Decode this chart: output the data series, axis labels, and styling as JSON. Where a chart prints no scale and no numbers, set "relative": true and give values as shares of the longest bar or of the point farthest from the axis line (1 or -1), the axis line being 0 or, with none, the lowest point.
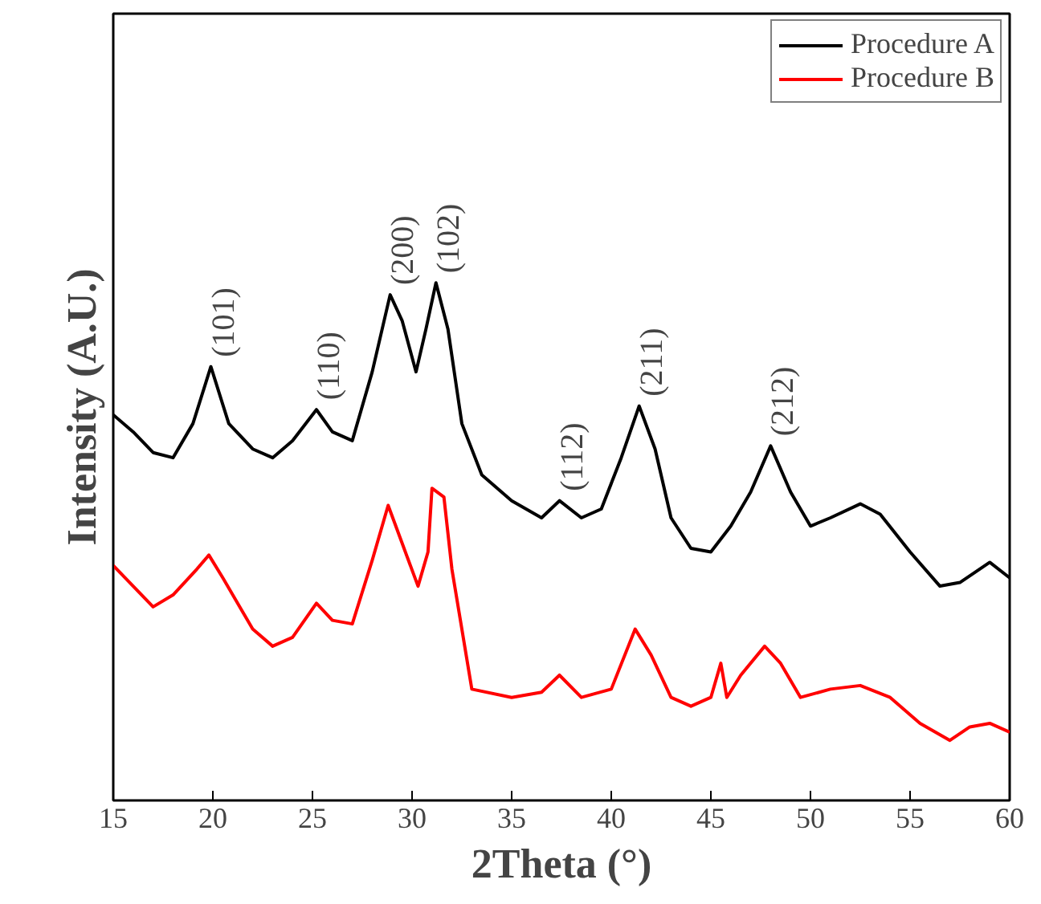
{
  "chart_data": {
    "type": "line",
    "xlabel": "2Theta (°)",
    "ylabel": "Intensity (A.U.)",
    "relative": true,
    "xlim": [
      15,
      60
    ],
    "xticks": [
      15,
      20,
      25,
      30,
      35,
      40,
      45,
      50,
      55,
      60
    ],
    "grid": false,
    "legend": "top right",
    "line_style": "solid",
    "marker": "none",
    "series": [
      {
        "name": "Procedure A",
        "color": "#000000",
        "x": [
          15,
          16,
          17,
          18,
          19,
          19.9,
          20.8,
          22,
          23,
          24,
          25.2,
          26,
          27,
          28,
          28.9,
          29.5,
          30.2,
          30.7,
          31.2,
          31.8,
          32.5,
          33.5,
          35,
          36.5,
          37.4,
          38.5,
          39.5,
          40.5,
          41.4,
          42.2,
          43,
          44,
          45,
          46,
          47,
          48,
          49,
          50,
          51,
          52.5,
          53.5,
          55,
          56.5,
          57.5,
          59,
          60
        ],
        "values": [
          0.745,
          0.712,
          0.672,
          0.662,
          0.728,
          0.838,
          0.728,
          0.679,
          0.662,
          0.695,
          0.755,
          0.712,
          0.695,
          0.828,
          0.977,
          0.927,
          0.828,
          0.911,
          1.0,
          0.911,
          0.728,
          0.629,
          0.579,
          0.546,
          0.579,
          0.546,
          0.563,
          0.662,
          0.762,
          0.679,
          0.546,
          0.487,
          0.48,
          0.53,
          0.596,
          0.685,
          0.596,
          0.53,
          0.546,
          0.573,
          0.553,
          0.48,
          0.414,
          0.421,
          0.46,
          0.43
        ]
      },
      {
        "name": "Procedure B",
        "color": "#ff0000",
        "x": [
          15,
          16,
          17,
          18,
          19.2,
          19.8,
          20.5,
          22,
          23,
          24,
          25.2,
          26,
          27,
          28,
          28.8,
          29.5,
          30.3,
          30.8,
          31,
          31.6,
          32,
          33,
          35,
          36.5,
          37.4,
          38.5,
          40,
          41.2,
          42,
          43,
          44,
          45,
          45.5,
          45.8,
          46.5,
          47.7,
          48.5,
          49.5,
          51,
          52.5,
          54,
          55.5,
          57,
          58,
          59,
          60
        ],
        "values": [
          0.454,
          0.414,
          0.374,
          0.397,
          0.447,
          0.474,
          0.43,
          0.331,
          0.298,
          0.315,
          0.381,
          0.348,
          0.341,
          0.464,
          0.57,
          0.497,
          0.414,
          0.48,
          0.603,
          0.586,
          0.447,
          0.215,
          0.199,
          0.209,
          0.242,
          0.199,
          0.215,
          0.331,
          0.281,
          0.199,
          0.182,
          0.199,
          0.265,
          0.199,
          0.242,
          0.298,
          0.265,
          0.199,
          0.215,
          0.222,
          0.199,
          0.149,
          0.116,
          0.142,
          0.149,
          0.132
        ]
      }
    ],
    "annotations": [
      {
        "text": "(101)",
        "x": 19.9,
        "y": 0.838
      },
      {
        "text": "(110)",
        "x": 25.2,
        "y": 0.755
      },
      {
        "text": "(200)",
        "x": 28.9,
        "y": 0.977
      },
      {
        "text": "(102)",
        "x": 31.2,
        "y": 1.0
      },
      {
        "text": "(112)",
        "x": 37.4,
        "y": 0.579
      },
      {
        "text": "(211)",
        "x": 41.4,
        "y": 0.762
      },
      {
        "text": "(212)",
        "x": 48,
        "y": 0.685
      }
    ]
  }
}
